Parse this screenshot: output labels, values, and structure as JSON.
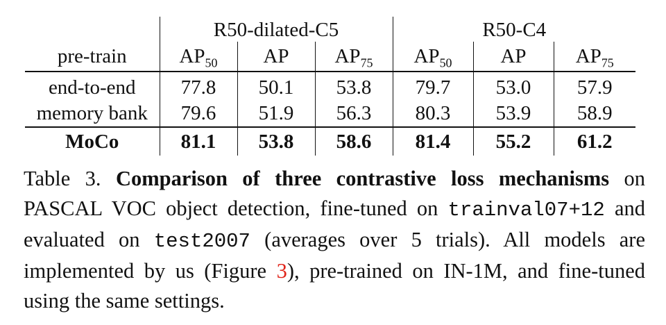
{
  "table": {
    "group_headers": [
      "R50-dilated-C5",
      "R50-C4"
    ],
    "row_header": "pre-train",
    "metric_headers": [
      {
        "base": "AP",
        "sub": "50"
      },
      {
        "base": "AP",
        "sub": ""
      },
      {
        "base": "AP",
        "sub": "75"
      },
      {
        "base": "AP",
        "sub": "50"
      },
      {
        "base": "AP",
        "sub": ""
      },
      {
        "base": "AP",
        "sub": "75"
      }
    ],
    "rows": [
      {
        "label": "end-to-end",
        "values": [
          "77.8",
          "50.1",
          "53.8",
          "79.7",
          "53.0",
          "57.9"
        ]
      },
      {
        "label": "memory bank",
        "values": [
          "79.6",
          "51.9",
          "56.3",
          "80.3",
          "53.9",
          "58.9"
        ]
      },
      {
        "label": "MoCo",
        "values": [
          "81.1",
          "53.8",
          "58.6",
          "81.4",
          "55.2",
          "61.2"
        ]
      }
    ]
  },
  "caption": {
    "prefix": "Table 3. ",
    "title": "Comparison of three contrastive loss mechanisms",
    "t1": " on PASCAL VOC object detection, fine-tuned on ",
    "code1": "trainval07+12",
    "t2": " and evaluated on ",
    "code2": "test2007",
    "t3": " (averages over 5 trials). All models are implemented by us (Figure ",
    "ref": "3",
    "t4": "), pre-trained on IN-1M, and fine-tuned using the same settings."
  },
  "colors": {
    "text": "#111111",
    "link": "#e0251b",
    "background": "#ffffff"
  }
}
